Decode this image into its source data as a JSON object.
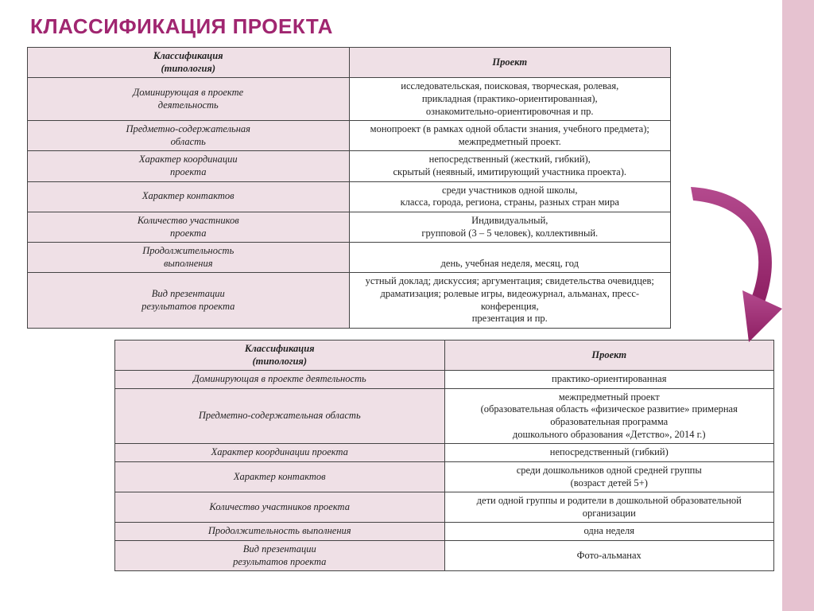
{
  "title": "КЛАССИФИКАЦИЯ ПРОЕКТА",
  "table1": {
    "header_left": "Классификация\n(типология)",
    "header_right": "Проект",
    "rows": [
      {
        "left": "Доминирующая в проекте\nдеятельность",
        "right": "исследовательская, поисковая, творческая, ролевая,\nприкладная (практико-ориентированная),\nознакомительно-ориентировочная и пр."
      },
      {
        "left": "Предметно-содержательная\nобласть",
        "right": "монопроект (в рамках одной области знания, учебного предмета);\nмежпредметный проект."
      },
      {
        "left": "Характер координации\nпроекта",
        "right": "непосредственный (жесткий, гибкий),\nскрытый (неявный, имитирующий участника проекта)."
      },
      {
        "left": "Характер контактов",
        "right": "среди участников одной школы,\nкласса, города, региона, страны, разных стран мира"
      },
      {
        "left": "Количество участников\nпроекта",
        "right": "Индивидуальный,\nгрупповой (3 – 5 человек), коллективный."
      },
      {
        "left": "Продолжительность\nвыполнения",
        "right": "\nдень, учебная неделя, месяц, год"
      },
      {
        "left": "Вид презентации\nрезультатов проекта",
        "right": "устный доклад; дискуссия; аргументация; свидетельства очевидцев;\nдраматизация; ролевые игры, видеожурнал, альманах, пресс-конференция,\nпрезентация и пр."
      }
    ]
  },
  "table2": {
    "header_left": "Классификация\n(типология)",
    "header_right": "Проект",
    "rows": [
      {
        "left": "Доминирующая в проекте деятельность",
        "right": "практико-ориентированная"
      },
      {
        "left": "Предметно-содержательная область",
        "right": "межпредметный проект\n(образовательная область «физическое развитие» примерная образовательная программа\nдошкольного образования «Детство», 2014 г.)"
      },
      {
        "left": "Характер координации проекта",
        "right": "непосредственный (гибкий)"
      },
      {
        "left": "Характер контактов",
        "right": "среди дошкольников одной средней группы\n(возраст детей 5+)"
      },
      {
        "left": "Количество участников проекта",
        "right": "дети одной группы и родители в дошкольной образовательной организации"
      },
      {
        "left": "Продолжительность выполнения",
        "right": "одна неделя"
      },
      {
        "left": "Вид презентации\nрезультатов проекта",
        "right": "Фото-альманах"
      }
    ]
  },
  "colors": {
    "accent": "#a02670",
    "header_bg": "#efe0e6",
    "stripe": "#e6c2d0",
    "arrow": "#a02670"
  }
}
